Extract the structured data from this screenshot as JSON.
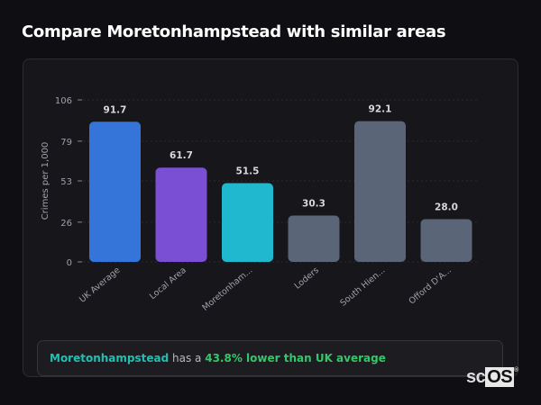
{
  "header": {
    "title": "Compare Moretonhampstead with similar areas"
  },
  "chart_data": {
    "type": "bar",
    "title": "",
    "xlabel": "",
    "ylabel": "Crimes per 1,000",
    "ylim": [
      0,
      106
    ],
    "yticks": [
      0,
      26,
      53,
      79,
      106
    ],
    "grid": true,
    "categories": [
      "UK Average",
      "Local Area",
      "Moretonham...",
      "Loders",
      "South Hien...",
      "Offord D'A..."
    ],
    "values": [
      91.7,
      61.7,
      51.5,
      30.3,
      92.1,
      28.0
    ],
    "value_labels": [
      "91.7",
      "61.7",
      "51.5",
      "30.3",
      "92.1",
      "28.0"
    ],
    "colors": [
      "#3574d8",
      "#7b4fd4",
      "#20b8cf",
      "#5a6577",
      "#5a6577",
      "#5a6577"
    ]
  },
  "summary": {
    "area": "Moretonhampstead",
    "connector": " has a ",
    "stat": "43.8% lower than UK average"
  },
  "logo": {
    "text_sc": "sc",
    "text_os": "OS",
    "mark": "®"
  }
}
